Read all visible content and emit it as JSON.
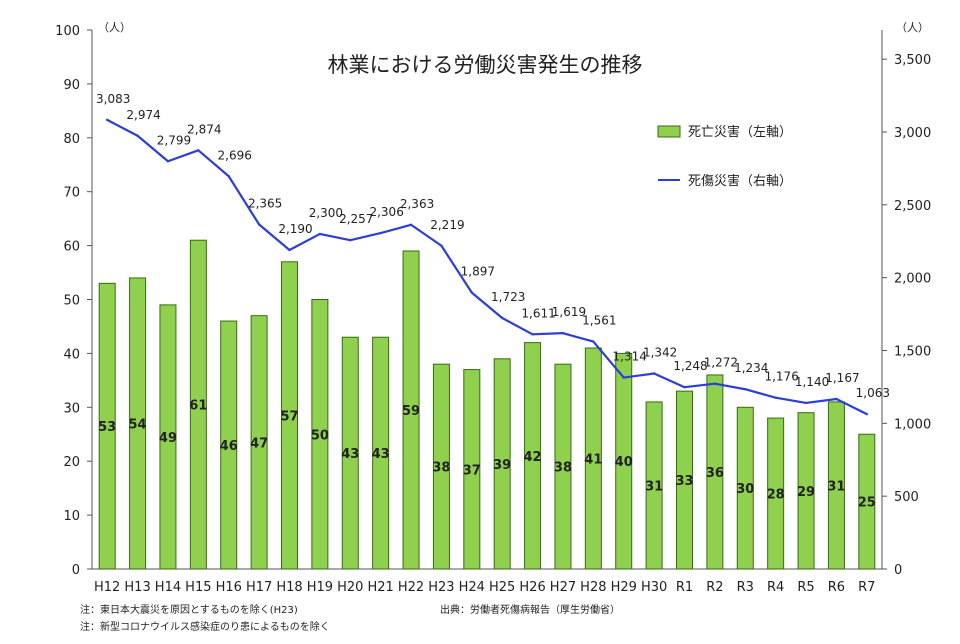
{
  "chart_data": {
    "type": "bar+line",
    "title": "林業における労働災害発生の推移",
    "categories": [
      "H12",
      "H13",
      "H14",
      "H15",
      "H16",
      "H17",
      "H18",
      "H19",
      "H20",
      "H21",
      "H22",
      "H23",
      "H24",
      "H25",
      "H26",
      "H27",
      "H28",
      "H29",
      "H30",
      "R1",
      "R2",
      "R3",
      "R4",
      "R5",
      "R6",
      "R7"
    ],
    "series": [
      {
        "name": "死亡災害（左軸）",
        "kind": "bar",
        "axis": "left",
        "color": "#8fd14f",
        "values": [
          53,
          54,
          49,
          61,
          46,
          47,
          57,
          50,
          43,
          43,
          59,
          38,
          37,
          39,
          42,
          38,
          41,
          40,
          31,
          33,
          36,
          30,
          28,
          29,
          31,
          25
        ],
        "labels": [
          "53",
          "54",
          "49",
          "61",
          "46",
          "47",
          "57",
          "50",
          "43",
          "43",
          "59",
          "38",
          "37",
          "39",
          "42",
          "38",
          "41",
          "40",
          "31",
          "33",
          "36",
          "30",
          "28",
          "29",
          "31",
          "25"
        ]
      },
      {
        "name": "死傷災害（右軸）",
        "kind": "line",
        "axis": "right",
        "color": "#2b3fd8",
        "values": [
          3083,
          2974,
          2799,
          2874,
          2696,
          2365,
          2190,
          2300,
          2257,
          2306,
          2363,
          2219,
          1897,
          1723,
          1611,
          1619,
          1561,
          1314,
          1342,
          1248,
          1272,
          1234,
          1176,
          1140,
          1167,
          1063
        ],
        "labels": [
          "3,083",
          "2,974",
          "2,799",
          "2,874",
          "2,696",
          "2,365",
          "2,190",
          "2,300",
          "2,257",
          "2,306",
          "2,363",
          "2,219",
          "1,897",
          "1,723",
          "1,611",
          "1,619",
          "1,561",
          "1,314",
          "1,342",
          "1,248",
          "1,272",
          "1,234",
          "1,176",
          "1,140",
          "1,167",
          "1,063"
        ]
      }
    ],
    "y_left": {
      "unit": "（人）",
      "range": [
        0,
        100
      ],
      "ticks": [
        0,
        10,
        20,
        30,
        40,
        50,
        60,
        70,
        80,
        90,
        100
      ],
      "tick_labels": [
        "0",
        "10",
        "20",
        "30",
        "40",
        "50",
        "60",
        "70",
        "80",
        "90",
        "100"
      ]
    },
    "y_right": {
      "unit": "（人）",
      "range": [
        0,
        3700
      ],
      "ticks": [
        0,
        500,
        1000,
        1500,
        2000,
        2500,
        3000,
        3500
      ],
      "tick_labels": [
        "0",
        "500",
        "1,000",
        "1,500",
        "2,000",
        "2,500",
        "3,000",
        "3,500"
      ]
    },
    "grid": false,
    "legend_position": "top-right",
    "notes": [
      "注：東日本大震災を原因とするものを除く(H23)",
      "注：新型コロナウイルス感染症のり患によるものを除く"
    ],
    "source": "出典：労働者死傷病報告（厚生労働省）"
  }
}
